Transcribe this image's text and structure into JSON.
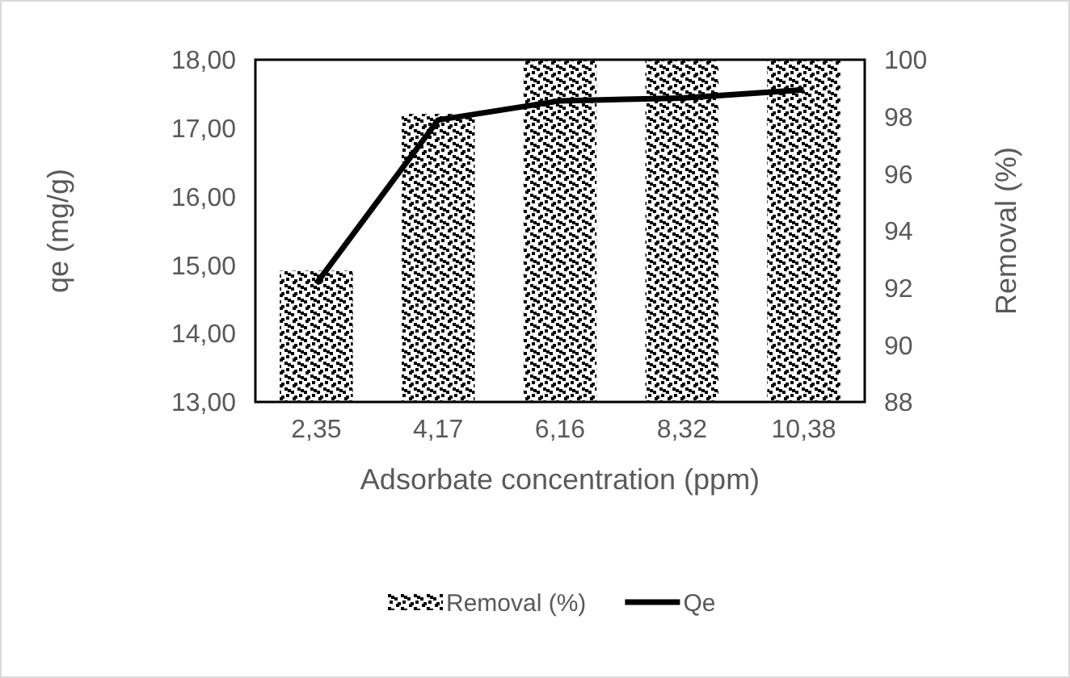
{
  "chart_data": {
    "type": "bar",
    "xlabel": "Adsorbate concentration (ppm)",
    "ylabel": "qe (mg/g)",
    "y2label": "Removal (%)",
    "categories": [
      "2,35",
      "4,17",
      "6,16",
      "8,32",
      "10,38"
    ],
    "series": [
      {
        "name": "Removal (%)",
        "axis": "y2",
        "color": "#000000",
        "values": [
          92.6,
          98.1,
          100,
          100,
          100
        ]
      },
      {
        "name": "Qe",
        "type": "line",
        "color": "#000000",
        "values": [
          14.73,
          17.12,
          17.4,
          17.44,
          17.56
        ]
      }
    ],
    "ylim": [
      13,
      18
    ],
    "yticks": [
      {
        "value": 13,
        "label": "13,00"
      },
      {
        "value": 14,
        "label": "14,00"
      },
      {
        "value": 15,
        "label": "15,00"
      },
      {
        "value": 16,
        "label": "16,00"
      },
      {
        "value": 17,
        "label": "17,00"
      },
      {
        "value": 18,
        "label": "18,00"
      }
    ],
    "y2lim": [
      88,
      100
    ],
    "y2ticks": [
      88,
      90,
      92,
      94,
      96,
      98,
      100
    ],
    "legend": "bottom",
    "marker": "none",
    "line_style": "solid",
    "grid": false
  }
}
